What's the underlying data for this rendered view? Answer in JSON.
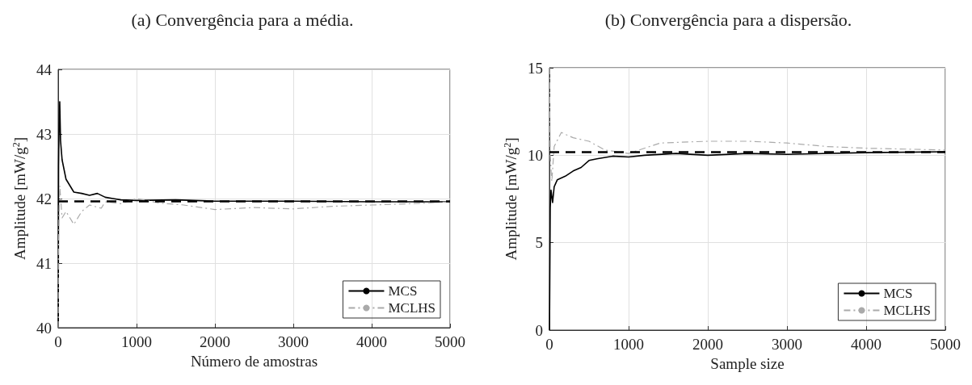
{
  "chart_data": [
    {
      "type": "line",
      "title": "(a) Convergência para a média.",
      "xlabel": "Número de amostras",
      "ylabel": "Amplitude [mW/g$^{2}$]",
      "xlim": [
        0,
        5000
      ],
      "xticks": [
        0,
        1000,
        2000,
        3000,
        4000,
        5000
      ],
      "ylim": [
        40,
        44
      ],
      "yticks": [
        40,
        41,
        42,
        43,
        44
      ],
      "grid": true,
      "legend": "bottom right",
      "series": [
        {
          "name": "MCS",
          "color": "#000000",
          "line_style": "solid",
          "x": [
            1,
            5,
            10,
            20,
            30,
            50,
            100,
            150,
            200,
            300,
            400,
            500,
            600,
            700,
            800,
            1000,
            1500,
            2000,
            3000,
            4000,
            5000
          ],
          "values": [
            40,
            42.5,
            43.0,
            43.5,
            42.9,
            42.6,
            42.3,
            42.2,
            42.1,
            42.08,
            42.05,
            42.08,
            42.02,
            42.0,
            41.98,
            41.97,
            41.98,
            41.96,
            41.96,
            41.95,
            41.95
          ]
        },
        {
          "name": "MCLHS",
          "color": "#aaaaaa",
          "line_style": "dashed",
          "x": [
            1,
            3,
            10,
            20,
            50,
            100,
            200,
            300,
            400,
            550,
            600,
            800,
            1000,
            1300,
            1600,
            2000,
            2500,
            3000,
            3500,
            4000,
            4500,
            5000
          ],
          "values": [
            40,
            41.1,
            41.7,
            42.2,
            41.7,
            41.8,
            41.6,
            41.8,
            41.9,
            41.85,
            41.95,
            41.92,
            42.0,
            41.93,
            41.9,
            41.83,
            41.86,
            41.84,
            41.88,
            41.9,
            41.92,
            41.95
          ]
        }
      ],
      "ref_lines": [
        {
          "axis": "y",
          "value": 41.96,
          "color": "#000000",
          "line_style": "dashed"
        }
      ]
    },
    {
      "type": "line",
      "title": "(b) Convergência para a dispersão.",
      "xlabel": "Sample size",
      "ylabel": "Amplitude [mW/g$^{2}$]",
      "xlim": [
        0,
        5000
      ],
      "xticks": [
        0,
        1000,
        2000,
        3000,
        4000,
        5000
      ],
      "ylim": [
        0,
        15
      ],
      "yticks": [
        0,
        5,
        10,
        15
      ],
      "grid": true,
      "legend": "bottom right",
      "series": [
        {
          "name": "MCS",
          "color": "#000000",
          "line_style": "solid",
          "x": [
            1,
            10,
            20,
            40,
            60,
            100,
            200,
            300,
            400,
            500,
            600,
            800,
            1000,
            1200,
            1600,
            2000,
            2500,
            3000,
            4000,
            5000
          ],
          "values": [
            0,
            7,
            8,
            7.3,
            8.2,
            8.6,
            8.8,
            9.1,
            9.3,
            9.7,
            9.8,
            9.95,
            9.9,
            10.0,
            10.1,
            10.0,
            10.1,
            10.05,
            10.15,
            10.2
          ]
        },
        {
          "name": "MCLHS",
          "color": "#aaaaaa",
          "line_style": "dashed",
          "x": [
            1,
            10,
            30,
            60,
            150,
            300,
            500,
            700,
            1000,
            1400,
            2000,
            2500,
            3000,
            3500,
            4000,
            5000
          ],
          "values": [
            15,
            10,
            8.5,
            10.5,
            11.3,
            11.0,
            10.8,
            10.3,
            10.1,
            10.7,
            10.8,
            10.8,
            10.7,
            10.5,
            10.4,
            10.3
          ]
        }
      ],
      "ref_lines": [
        {
          "axis": "y",
          "value": 10.2,
          "color": "#000000",
          "line_style": "dashed"
        }
      ]
    }
  ]
}
